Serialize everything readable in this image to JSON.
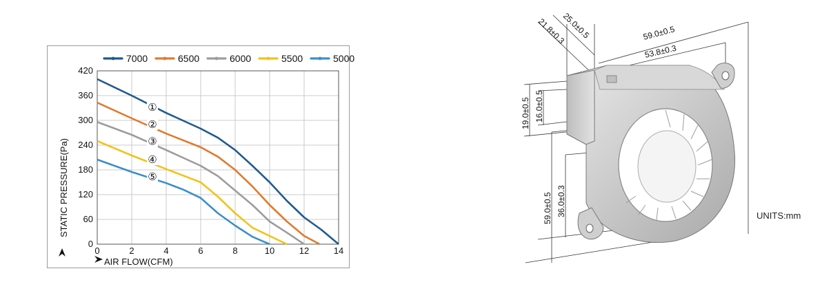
{
  "chart_data": {
    "type": "line",
    "xlabel": "AIR FLOW(CFM)",
    "ylabel": "STATIC PRESSURE(Pa)",
    "xlim": [
      0,
      14
    ],
    "ylim": [
      0,
      420
    ],
    "xticks": [
      0,
      2,
      4,
      6,
      8,
      10,
      12,
      14
    ],
    "yticks": [
      0,
      60,
      120,
      180,
      240,
      300,
      360,
      420
    ],
    "grid": true,
    "legend_position": "top",
    "series": [
      {
        "name": "7000",
        "marker": "①",
        "color": "#1f5a8f",
        "x": [
          0,
          2,
          4,
          6,
          7,
          8,
          9,
          10,
          11,
          12,
          13,
          14
        ],
        "y": [
          400,
          360,
          318,
          280,
          258,
          228,
          190,
          150,
          105,
          65,
          35,
          0
        ],
        "marker_at": [
          3.2,
          332
        ]
      },
      {
        "name": "6500",
        "marker": "②",
        "color": "#e07a2e",
        "x": [
          0,
          2,
          4,
          6,
          7,
          8,
          9,
          10,
          11,
          12,
          12.9
        ],
        "y": [
          343,
          305,
          268,
          235,
          212,
          180,
          140,
          95,
          55,
          20,
          0
        ],
        "marker_at": [
          3.2,
          290
        ]
      },
      {
        "name": "6000",
        "marker": "③",
        "color": "#9c9c9c",
        "x": [
          0,
          2,
          4,
          6,
          7,
          8,
          9,
          10,
          11,
          12
        ],
        "y": [
          296,
          265,
          228,
          190,
          165,
          130,
          95,
          55,
          28,
          0
        ],
        "marker_at": [
          3.2,
          249
        ]
      },
      {
        "name": "5500",
        "marker": "④",
        "color": "#f2c31a",
        "x": [
          0,
          2,
          4,
          6,
          7,
          8,
          9,
          10,
          11
        ],
        "y": [
          250,
          215,
          182,
          150,
          115,
          75,
          40,
          20,
          0
        ],
        "marker_at": [
          3.2,
          205
        ]
      },
      {
        "name": "5000",
        "marker": "⑤",
        "color": "#3a8fc8",
        "x": [
          0,
          2,
          4,
          5,
          6,
          7,
          8,
          9,
          10
        ],
        "y": [
          205,
          175,
          148,
          132,
          112,
          75,
          45,
          18,
          0
        ],
        "marker_at": [
          3.2,
          163
        ]
      }
    ]
  },
  "drawing": {
    "dimensions": {
      "top_left_a": "21.8±0.3",
      "top_left_b": "25.0±0.5",
      "width_overall": "59.0±0.5",
      "width_inner": "53.8±0.3",
      "side_a": "19.0±0.5",
      "side_b": "16.0±0.5",
      "height_overall": "59.0±0.5",
      "height_inner": "36.0±0.3"
    },
    "units": "UNITS:mm"
  }
}
